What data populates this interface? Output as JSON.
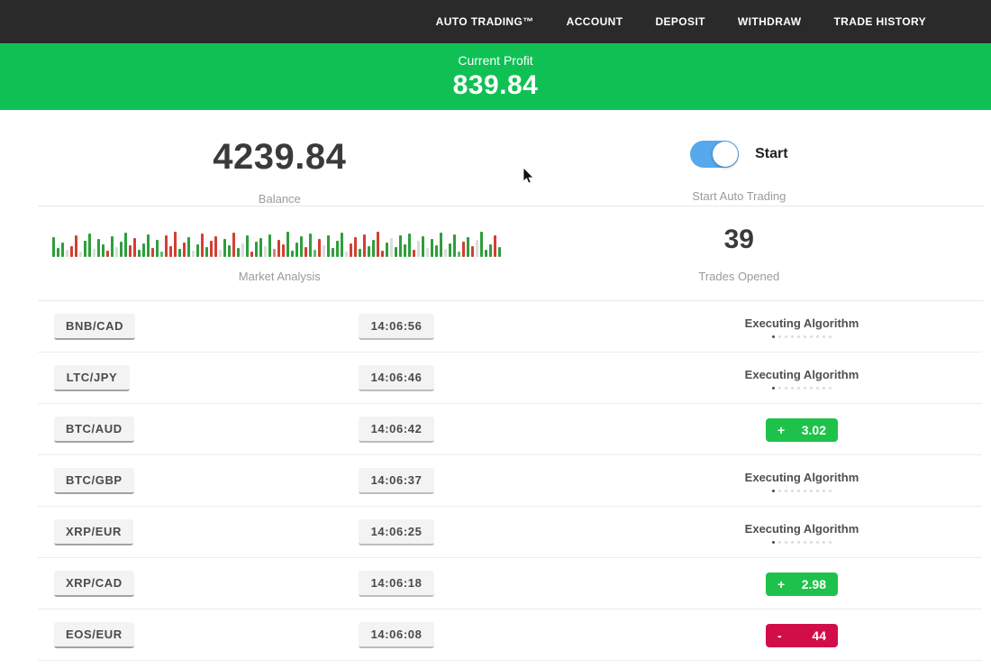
{
  "nav": {
    "items": [
      {
        "label": "AUTO TRADING™"
      },
      {
        "label": "ACCOUNT"
      },
      {
        "label": "DEPOSIT"
      },
      {
        "label": "WITHDRAW"
      },
      {
        "label": "TRADE HISTORY"
      }
    ]
  },
  "profit_banner": {
    "label": "Current Profit",
    "value": "839.84"
  },
  "stats": {
    "balance": {
      "value": "4239.84",
      "label": "Balance"
    },
    "auto_trading": {
      "toggle_label": "Start",
      "caption": "Start Auto Trading",
      "toggle_on": true
    },
    "market_analysis": {
      "label": "Market Analysis"
    },
    "trades_opened": {
      "value": "39",
      "label": "Trades Opened"
    }
  },
  "chart_data": {
    "type": "bar",
    "title": "Market Analysis",
    "note": "decorative mini candlestick/volume ticker strip, heights in px (max 34), no axes or gridlines",
    "palette": {
      "g": "#2e9e3c",
      "r": "#d23f34",
      "G": "#5cbd6a",
      "R": "#e08079",
      "p": "#d9ded9"
    },
    "bars": [
      [
        22,
        "g"
      ],
      [
        10,
        "g"
      ],
      [
        16,
        "g"
      ],
      [
        8,
        "p"
      ],
      [
        12,
        "r"
      ],
      [
        24,
        "r"
      ],
      [
        6,
        "p"
      ],
      [
        18,
        "g"
      ],
      [
        26,
        "g"
      ],
      [
        9,
        "p"
      ],
      [
        20,
        "g"
      ],
      [
        14,
        "g"
      ],
      [
        7,
        "r"
      ],
      [
        23,
        "g"
      ],
      [
        11,
        "p"
      ],
      [
        17,
        "g"
      ],
      [
        27,
        "g"
      ],
      [
        13,
        "r"
      ],
      [
        21,
        "r"
      ],
      [
        8,
        "g"
      ],
      [
        15,
        "g"
      ],
      [
        25,
        "g"
      ],
      [
        10,
        "r"
      ],
      [
        19,
        "g"
      ],
      [
        6,
        "G"
      ],
      [
        24,
        "r"
      ],
      [
        12,
        "r"
      ],
      [
        28,
        "r"
      ],
      [
        9,
        "g"
      ],
      [
        16,
        "r"
      ],
      [
        22,
        "g"
      ],
      [
        7,
        "p"
      ],
      [
        14,
        "g"
      ],
      [
        26,
        "r"
      ],
      [
        11,
        "g"
      ],
      [
        18,
        "r"
      ],
      [
        23,
        "r"
      ],
      [
        8,
        "p"
      ],
      [
        20,
        "g"
      ],
      [
        13,
        "g"
      ],
      [
        27,
        "r"
      ],
      [
        10,
        "g"
      ],
      [
        15,
        "p"
      ],
      [
        24,
        "g"
      ],
      [
        6,
        "r"
      ],
      [
        17,
        "g"
      ],
      [
        21,
        "g"
      ],
      [
        12,
        "p"
      ],
      [
        25,
        "g"
      ],
      [
        9,
        "R"
      ],
      [
        19,
        "r"
      ],
      [
        14,
        "r"
      ],
      [
        28,
        "g"
      ],
      [
        7,
        "g"
      ],
      [
        16,
        "g"
      ],
      [
        23,
        "g"
      ],
      [
        11,
        "r"
      ],
      [
        26,
        "g"
      ],
      [
        8,
        "G"
      ],
      [
        20,
        "r"
      ],
      [
        13,
        "p"
      ],
      [
        24,
        "g"
      ],
      [
        10,
        "g"
      ],
      [
        18,
        "g"
      ],
      [
        27,
        "g"
      ],
      [
        6,
        "p"
      ],
      [
        15,
        "r"
      ],
      [
        22,
        "r"
      ],
      [
        9,
        "g"
      ],
      [
        25,
        "r"
      ],
      [
        12,
        "g"
      ],
      [
        19,
        "g"
      ],
      [
        28,
        "r"
      ],
      [
        7,
        "r"
      ],
      [
        16,
        "g"
      ],
      [
        21,
        "p"
      ],
      [
        11,
        "g"
      ],
      [
        24,
        "g"
      ],
      [
        14,
        "g"
      ],
      [
        26,
        "g"
      ],
      [
        8,
        "r"
      ],
      [
        18,
        "p"
      ],
      [
        23,
        "g"
      ],
      [
        10,
        "p"
      ],
      [
        20,
        "g"
      ],
      [
        13,
        "g"
      ],
      [
        27,
        "g"
      ],
      [
        9,
        "p"
      ],
      [
        15,
        "g"
      ],
      [
        25,
        "g"
      ],
      [
        6,
        "G"
      ],
      [
        17,
        "r"
      ],
      [
        22,
        "g"
      ],
      [
        12,
        "r"
      ],
      [
        19,
        "p"
      ],
      [
        28,
        "g"
      ],
      [
        8,
        "g"
      ],
      [
        14,
        "g"
      ],
      [
        24,
        "r"
      ],
      [
        11,
        "g"
      ]
    ]
  },
  "trades": {
    "executing_dots": {
      "total": 10,
      "active": 1
    },
    "rows": [
      {
        "pair": "BNB/CAD",
        "time": "14:06:56",
        "status": {
          "type": "executing",
          "label": "Executing Algorithm"
        }
      },
      {
        "pair": "LTC/JPY",
        "time": "14:06:46",
        "status": {
          "type": "executing",
          "label": "Executing Algorithm"
        }
      },
      {
        "pair": "BTC/AUD",
        "time": "14:06:42",
        "status": {
          "type": "result",
          "sign": "+",
          "amount": "3.02",
          "color": "#1ec24a"
        }
      },
      {
        "pair": "BTC/GBP",
        "time": "14:06:37",
        "status": {
          "type": "executing",
          "label": "Executing Algorithm"
        }
      },
      {
        "pair": "XRP/EUR",
        "time": "14:06:25",
        "status": {
          "type": "executing",
          "label": "Executing Algorithm"
        }
      },
      {
        "pair": "XRP/CAD",
        "time": "14:06:18",
        "status": {
          "type": "result",
          "sign": "+",
          "amount": "2.98",
          "color": "#1ec24a"
        }
      },
      {
        "pair": "EOS/EUR",
        "time": "14:06:08",
        "status": {
          "type": "result",
          "sign": "-",
          "amount": "44",
          "color": "#d20e49"
        }
      }
    ]
  },
  "colors": {
    "nav_bg": "#2b2a2a",
    "banner_green": "#0fc154",
    "badge_green": "#1ec24a",
    "badge_red": "#d20e49",
    "toggle_blue": "#55a9ec"
  }
}
